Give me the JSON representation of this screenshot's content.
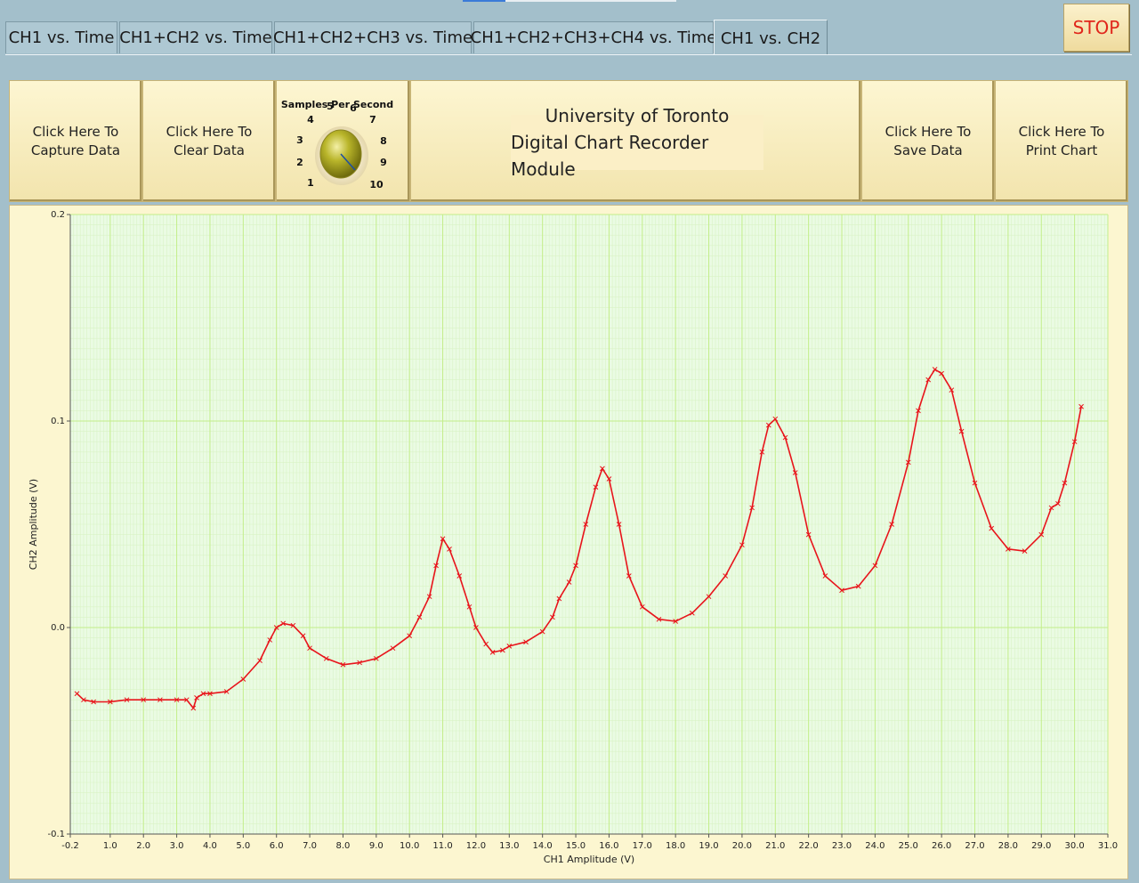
{
  "tabs": [
    {
      "label": "CH1 vs. Time",
      "active": false
    },
    {
      "label": "CH1+CH2 vs. Time",
      "active": false
    },
    {
      "label": "CH1+CH2+CH3 vs. Time",
      "active": false
    },
    {
      "label": "CH1+CH2+CH3+CH4 vs. Time",
      "active": false
    },
    {
      "label": "CH1 vs. CH2",
      "active": true
    }
  ],
  "stop_label": "STOP",
  "toolbar": {
    "capture_label": "Click Here To\nCapture Data",
    "clear_label": "Click Here To\nClear Data",
    "save_label": "Click Here To\nSave Data",
    "print_label": "Click Here To\nPrint Chart",
    "title_line1": "University of Toronto",
    "title_line2": "Digital Chart Recorder Module"
  },
  "knob": {
    "label": "Samples Per Second",
    "ticks": [
      "1",
      "2",
      "3",
      "4",
      "5",
      "6",
      "7",
      "8",
      "9",
      "10"
    ],
    "value": 9
  },
  "colors": {
    "trace": "#e8141b",
    "plot_bg": "#eafbe3",
    "grid_major": "#c3ee8a",
    "grid_minor": "#d9f3c6",
    "panel": "#f7ecbd"
  },
  "chart_data": {
    "type": "line",
    "xlabel": "CH1 Amplitude (V)",
    "ylabel": "CH2 Amplitude (V)",
    "xlim": [
      -0.2,
      31.0
    ],
    "ylim": [
      -0.1,
      0.2
    ],
    "xticks": [
      "-0.2",
      "1.0",
      "2.0",
      "3.0",
      "4.0",
      "5.0",
      "6.0",
      "7.0",
      "8.0",
      "9.0",
      "10.0",
      "11.0",
      "12.0",
      "13.0",
      "14.0",
      "15.0",
      "16.0",
      "17.0",
      "18.0",
      "19.0",
      "20.0",
      "21.0",
      "22.0",
      "23.0",
      "24.0",
      "25.0",
      "26.0",
      "27.0",
      "28.0",
      "29.0",
      "30.0",
      "31.0"
    ],
    "yticks": [
      "-0.1",
      "0.0",
      "0.1",
      "0.2"
    ],
    "grid": true,
    "series": [
      {
        "x": [
          0.0,
          0.2,
          0.5,
          1.0,
          1.5,
          2.0,
          2.5,
          3.0,
          3.3,
          3.5,
          3.6,
          3.8,
          4.0,
          4.5,
          5.0,
          5.5,
          5.8,
          6.0,
          6.2,
          6.5,
          6.8,
          7.0,
          7.5,
          8.0,
          8.5,
          9.0,
          9.5,
          10.0,
          10.3,
          10.6,
          10.8,
          11.0,
          11.2,
          11.5,
          11.8,
          12.0,
          12.3,
          12.5,
          12.8,
          13.0,
          13.5,
          14.0,
          14.3,
          14.5,
          14.8,
          15.0,
          15.3,
          15.6,
          15.8,
          16.0,
          16.3,
          16.6,
          17.0,
          17.5,
          18.0,
          18.5,
          19.0,
          19.5,
          20.0,
          20.3,
          20.6,
          20.8,
          21.0,
          21.3,
          21.6,
          22.0,
          22.5,
          23.0,
          23.5,
          24.0,
          24.5,
          25.0,
          25.3,
          25.6,
          25.8,
          26.0,
          26.3,
          26.6,
          27.0,
          27.5,
          28.0,
          28.5,
          29.0,
          29.3,
          29.5,
          29.7,
          30.0,
          30.2
        ],
        "y": [
          -0.032,
          -0.035,
          -0.036,
          -0.036,
          -0.035,
          -0.035,
          -0.035,
          -0.035,
          -0.035,
          -0.039,
          -0.034,
          -0.032,
          -0.032,
          -0.031,
          -0.025,
          -0.016,
          -0.006,
          0.0,
          0.002,
          0.001,
          -0.004,
          -0.01,
          -0.015,
          -0.018,
          -0.017,
          -0.015,
          -0.01,
          -0.004,
          0.005,
          0.015,
          0.03,
          0.043,
          0.038,
          0.025,
          0.01,
          0.0,
          -0.008,
          -0.012,
          -0.011,
          -0.009,
          -0.007,
          -0.002,
          0.005,
          0.014,
          0.022,
          0.03,
          0.05,
          0.068,
          0.077,
          0.072,
          0.05,
          0.025,
          0.01,
          0.004,
          0.003,
          0.007,
          0.015,
          0.025,
          0.04,
          0.058,
          0.085,
          0.098,
          0.101,
          0.092,
          0.075,
          0.045,
          0.025,
          0.018,
          0.02,
          0.03,
          0.05,
          0.08,
          0.105,
          0.12,
          0.125,
          0.123,
          0.115,
          0.095,
          0.07,
          0.048,
          0.038,
          0.037,
          0.045,
          0.058,
          0.06,
          0.07,
          0.09,
          0.107
        ]
      }
    ]
  }
}
